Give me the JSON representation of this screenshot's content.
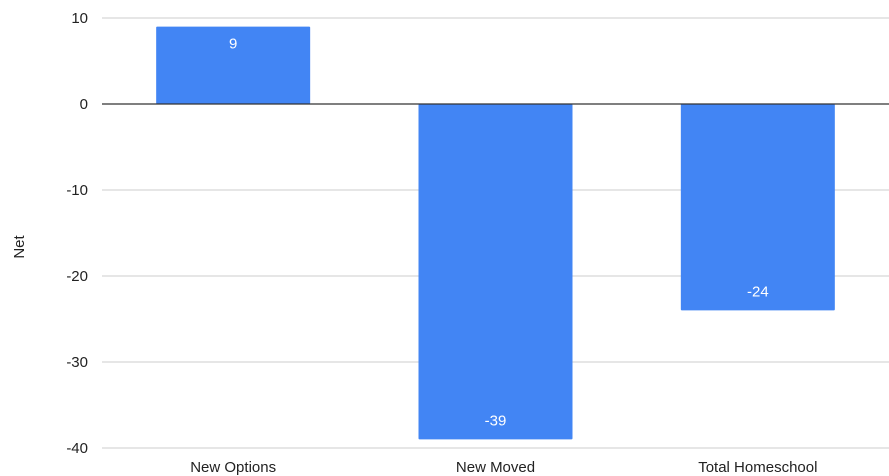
{
  "chart_data": {
    "type": "bar",
    "categories": [
      "New Options",
      "New Moved",
      "Total Homeschool"
    ],
    "values": [
      9,
      -39,
      -24
    ],
    "data_labels": [
      "9",
      "-39",
      "-24"
    ],
    "title": "",
    "xlabel": "",
    "ylabel": "Net",
    "ylim": [
      -40,
      10
    ],
    "yticks": [
      10,
      0,
      -10,
      -20,
      -30,
      -40
    ],
    "ytick_labels": [
      "10",
      "0",
      "-10",
      "-20",
      "-30",
      "-40"
    ],
    "grid": true,
    "legend": "none",
    "colors": {
      "bar": "#4285f4",
      "grid": "#cccccc",
      "zero_line": "#333333",
      "text": "#222222",
      "data_label": "#ffffff"
    }
  }
}
